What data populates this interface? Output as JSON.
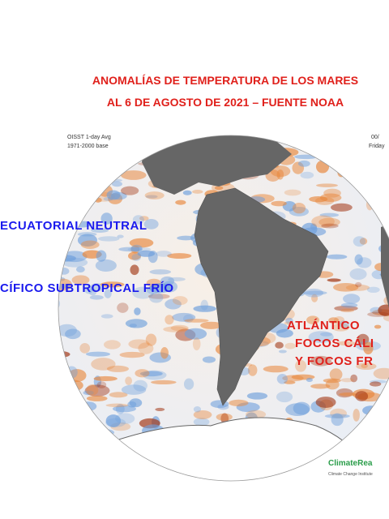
{
  "header": {
    "title_line1": "ANOMALÍAS DE TEMPERATURA DE LOS MARES",
    "title_line2": "AL 6 DE AGOSTO DE 2021 – FUENTE NOAA"
  },
  "map_info": {
    "left_line1": "OISST 1-day Avg",
    "left_line2": "1971-2000 base",
    "right_line1": "00/",
    "right_line2": "Friday"
  },
  "labels": {
    "pacific_equatorial": "ECUATORIAL  NEUTRAL",
    "pacific_subtropical": "CÍFICO  SUBTROPICAL  FRÍO",
    "atlantic_title": "ATLÁNTICO",
    "atlantic_line2": "FOCOS CÁLI",
    "atlantic_line3": "Y FOCOS FR"
  },
  "logo": {
    "name": "ClimateRea",
    "subtitle": "Climate Change Institute"
  }
}
